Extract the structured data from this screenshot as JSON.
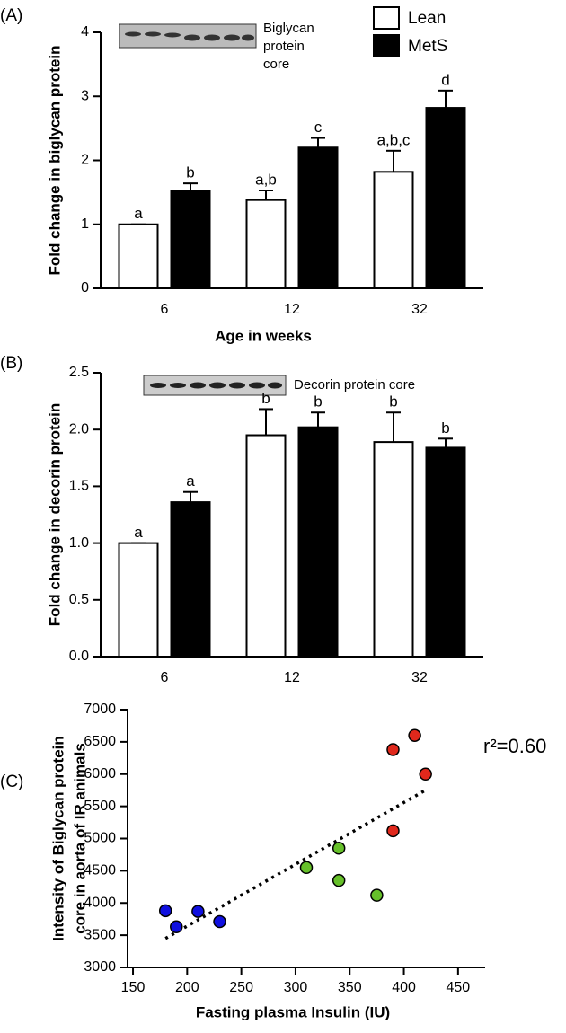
{
  "chart_data": [
    {
      "type": "bar",
      "panel_label": "(A)",
      "ylabel": "Fold change in biglycan protein",
      "xlabel": "Age in weeks",
      "blot_label": [
        "Biglycan",
        "protein",
        "core"
      ],
      "categories": [
        "6",
        "12",
        "32"
      ],
      "ylim": [
        0,
        4
      ],
      "yticks": [
        0,
        1,
        2,
        3,
        4
      ],
      "legend": "upper right",
      "series": [
        {
          "name": "Lean",
          "color": "#ffffff",
          "values": [
            1.0,
            1.38,
            1.82
          ],
          "errors": [
            0,
            0.15,
            0.33
          ],
          "letters": [
            "a",
            "a,b",
            "a,b,c"
          ]
        },
        {
          "name": "MetS",
          "color": "#000000",
          "values": [
            1.52,
            2.2,
            2.82
          ],
          "errors": [
            0.12,
            0.15,
            0.27
          ],
          "letters": [
            "b",
            "c",
            "d"
          ]
        }
      ]
    },
    {
      "type": "bar",
      "panel_label": "(B)",
      "ylabel": "Fold  change in decorin protein",
      "blot_label": [
        "Decorin protein core"
      ],
      "categories": [
        "6",
        "12",
        "32"
      ],
      "ylim": [
        0,
        2.5
      ],
      "yticks": [
        {
          "value": 0,
          "label": "0.0"
        },
        0.5,
        {
          "value": 1,
          "label": "1.0"
        },
        1.5,
        {
          "value": 2,
          "label": "2.0"
        },
        2.5
      ],
      "series": [
        {
          "color": "#ffffff",
          "values": [
            1.0,
            1.95,
            1.89
          ],
          "errors": [
            0,
            0.23,
            0.26
          ],
          "letters": [
            "a",
            "b",
            "b"
          ]
        },
        {
          "color": "#000000",
          "values": [
            1.36,
            2.02,
            1.84
          ],
          "errors": [
            0.09,
            0.13,
            0.08
          ],
          "letters": [
            "a",
            "b",
            "b"
          ]
        }
      ]
    },
    {
      "type": "scatter",
      "panel_label": "(C)",
      "ylabel": [
        "Intensity of Biglycan protein",
        "core in aorta of IR animals"
      ],
      "xlabel": "Fasting plasma Insulin (IU)",
      "annotation": "r²=0.60",
      "xlim": [
        145,
        475
      ],
      "xticks": [
        150,
        200,
        250,
        300,
        350,
        400,
        450
      ],
      "ylim": [
        3000,
        7000
      ],
      "yticks": [
        3000,
        3500,
        4000,
        4500,
        5000,
        5500,
        6000,
        6500,
        7000
      ],
      "series": [
        {
          "color": "#1010e0",
          "x": [
            180,
            190,
            210,
            230
          ],
          "values": [
            3880,
            3630,
            3870,
            3710
          ]
        },
        {
          "color": "#66c02a",
          "x": [
            310,
            340,
            340,
            375
          ],
          "values": [
            4550,
            4850,
            4350,
            4120
          ]
        },
        {
          "color": "#e0281c",
          "x": [
            390,
            410,
            420,
            390
          ],
          "values": [
            6380,
            6600,
            6000,
            5120
          ]
        }
      ],
      "trendline": {
        "x": [
          180,
          420
        ],
        "values": [
          3450,
          5750
        ]
      }
    }
  ]
}
